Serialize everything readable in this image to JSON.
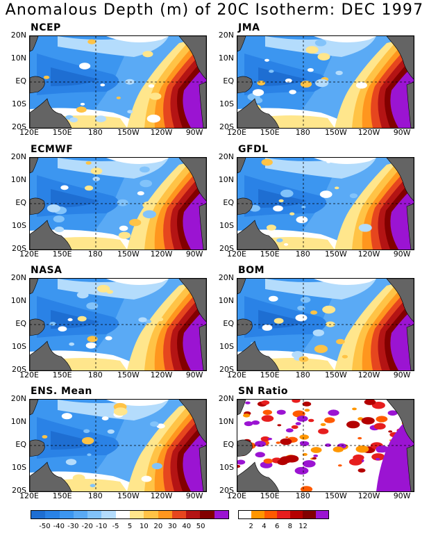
{
  "title": "Anomalous Depth (m) of 20C Isotherm: DEC 1997",
  "lat_labels": [
    "20N",
    "10N",
    "EQ",
    "10S",
    "20S"
  ],
  "lon_labels": [
    "120E",
    "150E",
    "180",
    "150W",
    "120W",
    "90W"
  ],
  "panels": [
    {
      "name": "NCEP"
    },
    {
      "name": "JMA"
    },
    {
      "name": "ECMWF"
    },
    {
      "name": "GFDL"
    },
    {
      "name": "NASA"
    },
    {
      "name": "BOM"
    },
    {
      "name": "ENS. Mean"
    },
    {
      "name": "SN Ratio"
    }
  ],
  "colorbar_depth": {
    "labels": [
      "-50",
      "-40",
      "-30",
      "-20",
      "-10",
      "-5",
      "5",
      "10",
      "20",
      "30",
      "40",
      "50"
    ],
    "colors": [
      "#1e6ed2",
      "#2a82e6",
      "#3c96f0",
      "#5aaaf5",
      "#82c3fa",
      "#b4dcfc",
      "#ffffff",
      "#ffe68c",
      "#ffc346",
      "#ff961e",
      "#e6461e",
      "#b41414",
      "#820000",
      "#9b14d2"
    ]
  },
  "colorbar_sn": {
    "labels": [
      "2",
      "4",
      "6",
      "8",
      "12"
    ],
    "colors": [
      "#ffffff",
      "#ff9600",
      "#ff5a00",
      "#e61e1e",
      "#b40000",
      "#820000",
      "#9b14d2"
    ]
  }
}
